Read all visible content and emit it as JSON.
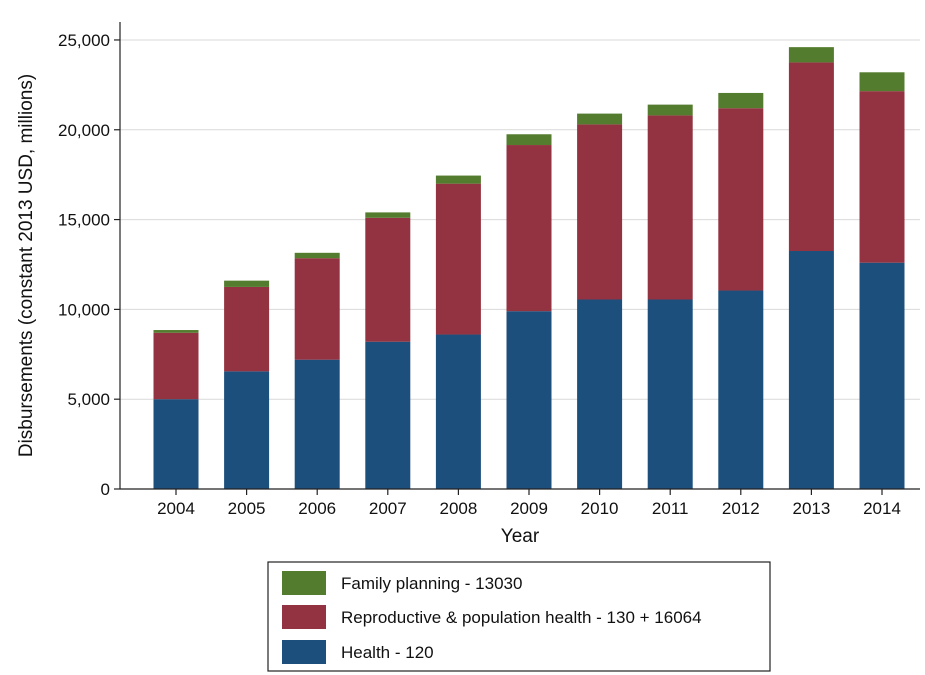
{
  "chart_data": {
    "type": "bar",
    "stacked": true,
    "categories": [
      "2004",
      "2005",
      "2006",
      "2007",
      "2008",
      "2009",
      "2010",
      "2011",
      "2012",
      "2013",
      "2014"
    ],
    "series": [
      {
        "name": "Health - 120",
        "color": "#1c4f7c",
        "values": [
          5000,
          6550,
          7200,
          8200,
          8600,
          9900,
          10550,
          10550,
          11050,
          13250,
          12600
        ]
      },
      {
        "name": "Reproductive & population health - 130 + 16064",
        "color": "#933240",
        "values": [
          3700,
          4700,
          5650,
          6900,
          8400,
          9250,
          9750,
          10250,
          10150,
          10500,
          9550
        ]
      },
      {
        "name": "Family planning - 13030",
        "color": "#537c2e",
        "values": [
          150,
          350,
          300,
          300,
          450,
          600,
          600,
          600,
          850,
          850,
          1050
        ]
      }
    ],
    "xlabel": "Year",
    "ylabel": "Disbursements (constant 2013 USD, millions)",
    "ylim": [
      0,
      26000
    ],
    "yticks": [
      0,
      5000,
      10000,
      15000,
      20000,
      25000
    ],
    "ytick_labels": [
      "0",
      "5,000",
      "10,000",
      "15,000",
      "20,000",
      "25,000"
    ],
    "grid": true,
    "legend_position": "bottom",
    "legend_order": [
      "Family planning - 13030",
      "Reproductive & population health - 130 + 16064",
      "Health - 120"
    ]
  }
}
